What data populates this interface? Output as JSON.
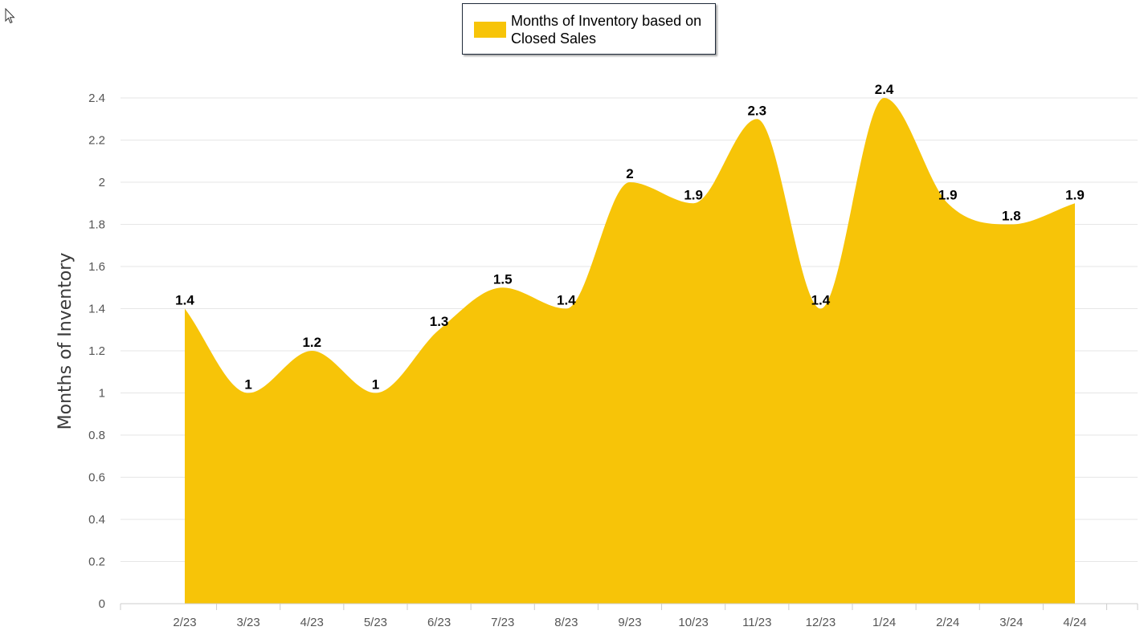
{
  "colors": {
    "area": "#F7C408",
    "grid": "#e6e6e6",
    "axis": "#cccccc"
  },
  "icons": {
    "cursor": "mouse-pointer-icon"
  },
  "chart_data": {
    "type": "area",
    "categories": [
      "2/23",
      "3/23",
      "4/23",
      "5/23",
      "6/23",
      "7/23",
      "8/23",
      "9/23",
      "10/23",
      "11/23",
      "12/23",
      "1/24",
      "2/24",
      "3/24",
      "4/24"
    ],
    "series": [
      {
        "name": "Months of Inventory based on Closed Sales",
        "values": [
          1.4,
          1,
          1.2,
          1,
          1.3,
          1.5,
          1.4,
          2,
          1.9,
          2.3,
          1.4,
          2.4,
          1.9,
          1.8,
          1.9
        ]
      }
    ],
    "data_labels": [
      "1.4",
      "1",
      "1.2",
      "1",
      "1.3",
      "1.5",
      "1.4",
      "2",
      "1.9",
      "2.3",
      "1.4",
      "2.4",
      "1.9",
      "1.8",
      "1.9"
    ],
    "y_ticks": [
      "0",
      "0.2",
      "0.4",
      "0.6",
      "0.8",
      "1",
      "1.2",
      "1.4",
      "1.6",
      "1.8",
      "2",
      "2.2",
      "2.4"
    ],
    "ylim": [
      0,
      2.4
    ],
    "ylabel": "Months of Inventory",
    "xlabel": "",
    "title": "",
    "grid": true,
    "legend_position": "top-center",
    "smooth": true
  }
}
